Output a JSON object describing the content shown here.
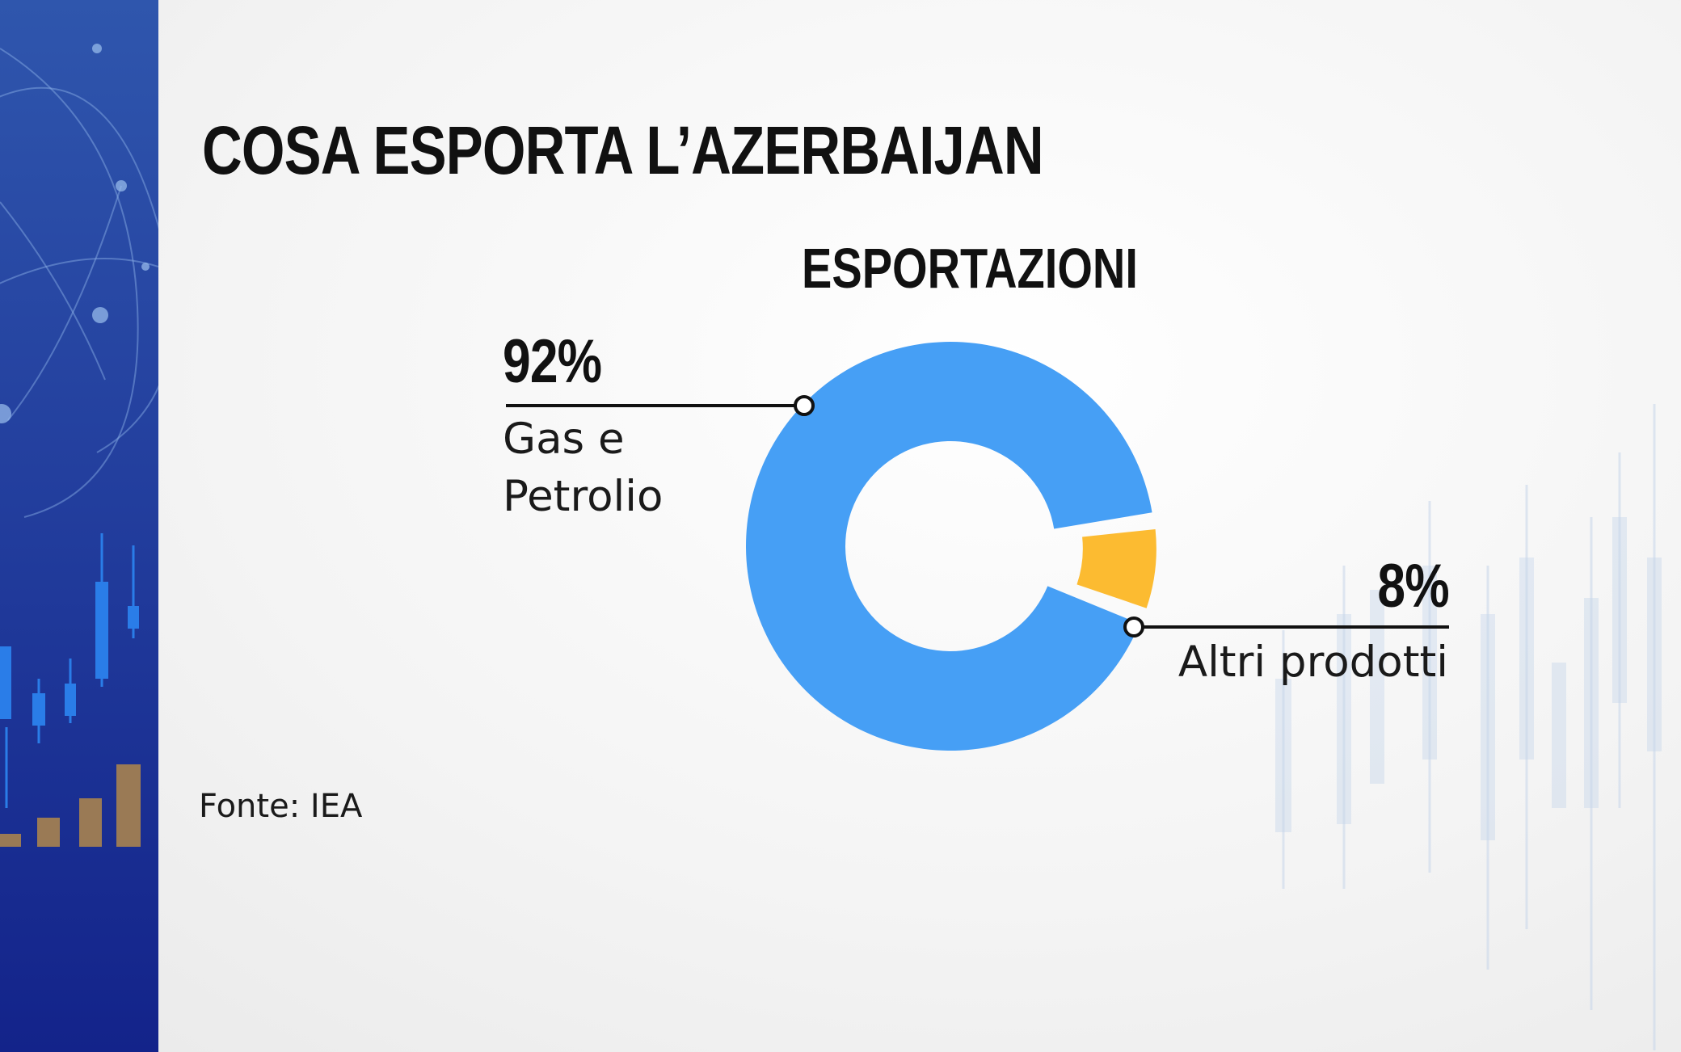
{
  "header": {
    "title": "COSA ESPORTA L’AZERBAIJAN"
  },
  "chart_data": {
    "type": "pie",
    "title": "ESPORTAZIONI",
    "style": "donut",
    "slices": [
      {
        "label": "Gas e Petrolio",
        "value": 92,
        "value_label": "92%",
        "color": "#469ff5"
      },
      {
        "label": "Altri prodotti",
        "value": 8,
        "value_label": "8%",
        "color": "#fcbb31",
        "exploded": true
      }
    ]
  },
  "source": "Fonte: IEA",
  "colors": {
    "sidebar": "#233f9e",
    "primary_slice": "#469ff5",
    "secondary_slice": "#fcbb31",
    "text": "#111111"
  }
}
